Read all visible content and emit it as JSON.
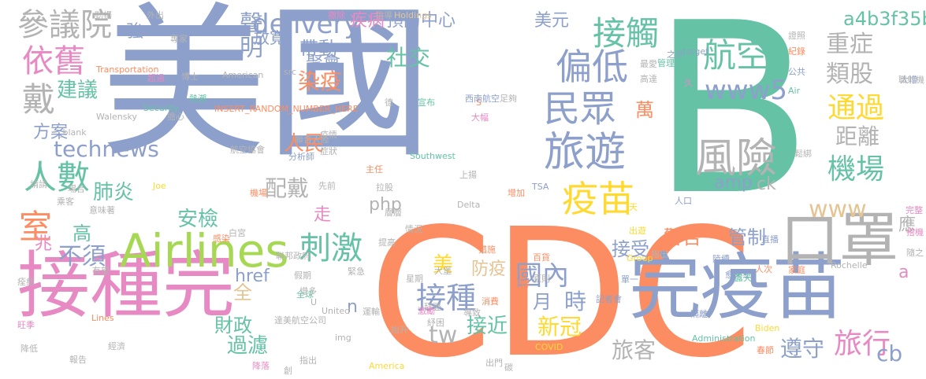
{
  "words": [
    {
      "text": "美國",
      "color": "#8da0cb"
    },
    {
      "text": "B",
      "color": "#66c2a5"
    },
    {
      "text": "CDC",
      "color": "#fc8d62"
    },
    {
      "text": "接種完",
      "color": "#e78ac3"
    },
    {
      "text": "完",
      "color": "#8da0cb"
    },
    {
      "text": "疫苗",
      "color": "#8da0cb"
    },
    {
      "text": "口罩",
      "color": "#b3b3b3"
    },
    {
      "text": "Airlines",
      "color": "#a6d854"
    },
    {
      "text": "旅遊",
      "color": "#8da0cb"
    },
    {
      "text": "風險",
      "color": "#b3b3b3"
    },
    {
      "text": "航空",
      "color": "#66c2a5"
    },
    {
      "text": "www5",
      "color": "#8da0cb"
    },
    {
      "text": "接觸",
      "color": "#66c2a5"
    },
    {
      "text": "偏低",
      "color": "#8da0cb"
    },
    {
      "text": "民眾",
      "color": "#8da0cb"
    },
    {
      "text": "疫苗",
      "color": "#ffd92f"
    },
    {
      "text": "參議院",
      "color": "#b3b3b3"
    },
    {
      "text": "依舊",
      "color": "#e78ac3"
    },
    {
      "text": "戴",
      "color": "#b3b3b3"
    },
    {
      "text": "delivery",
      "color": "#8da0cb"
    },
    {
      "text": "聲明",
      "color": "#8da0cb"
    },
    {
      "text": "放寬",
      "color": "#8da0cb"
    },
    {
      "text": "人數",
      "color": "#66c2a5"
    },
    {
      "text": "technews",
      "color": "#8da0cb"
    },
    {
      "text": "建議",
      "color": "#66c2a5"
    },
    {
      "text": "染疫",
      "color": "#fc8d62"
    },
    {
      "text": "人民",
      "color": "#fc8d62"
    },
    {
      "text": "肺炎",
      "color": "#66c2a5"
    },
    {
      "text": "配戴",
      "color": "#b3b3b3"
    },
    {
      "text": "安檢",
      "color": "#66c2a5"
    },
    {
      "text": "室",
      "color": "#fc8d62"
    },
    {
      "text": "高",
      "color": "#66c2a5"
    },
    {
      "text": "不須",
      "color": "#8da0cb"
    },
    {
      "text": "刺激",
      "color": "#66c2a5"
    },
    {
      "text": "全",
      "color": "#e5c494"
    },
    {
      "text": "財政",
      "color": "#66c2a5"
    },
    {
      "text": "過濾",
      "color": "#66c2a5"
    },
    {
      "text": "href",
      "color": "#8da0cb"
    },
    {
      "text": "接種",
      "color": "#8da0cb"
    },
    {
      "text": "國內",
      "color": "#8da0cb"
    },
    {
      "text": "新冠",
      "color": "#ffd92f"
    },
    {
      "text": "防疫",
      "color": "#e5c494"
    },
    {
      "text": "接近",
      "color": "#66c2a5"
    },
    {
      "text": "tw",
      "color": "#b3b3b3"
    },
    {
      "text": "重症",
      "color": "#b3b3b3"
    },
    {
      "text": "類股",
      "color": "#b3b3b3"
    },
    {
      "text": "通過",
      "color": "#ffd92f"
    },
    {
      "text": "距離",
      "color": "#b3b3b3"
    },
    {
      "text": "機場",
      "color": "#66c2a5"
    },
    {
      "text": "www",
      "color": "#e5c494"
    },
    {
      "text": "疾病",
      "color": "#e78ac3"
    },
    {
      "text": "預防中心",
      "color": "#8da0cb"
    },
    {
      "text": "美元",
      "color": "#8da0cb"
    },
    {
      "text": "a4b3f35b",
      "color": "#66c2a5"
    },
    {
      "text": "社交",
      "color": "#66c2a5"
    },
    {
      "text": "帶動",
      "color": "#8da0cb"
    },
    {
      "text": "聚會",
      "color": "#8da0cb"
    },
    {
      "text": "旅行",
      "color": "#e78ac3"
    },
    {
      "text": "遵守",
      "color": "#8da0cb"
    },
    {
      "text": "旅客",
      "color": "#b3b3b3"
    },
    {
      "text": "警告",
      "color": "#fc8d62"
    },
    {
      "text": "管制",
      "color": "#8da0cb"
    },
    {
      "text": "接受",
      "color": "#8da0cb"
    },
    {
      "text": "amp",
      "color": "#8da0cb"
    },
    {
      "text": "ck",
      "color": "#b3b3b3"
    },
    {
      "text": "萬",
      "color": "#fc8d62"
    },
    {
      "text": "cb",
      "color": "#8da0cb"
    },
    {
      "text": "應",
      "color": "#b3b3b3"
    },
    {
      "text": "月",
      "color": "#8da0cb"
    },
    {
      "text": "時",
      "color": "#8da0cb"
    },
    {
      "text": "美",
      "color": "#ffd92f"
    },
    {
      "text": "方案",
      "color": "#8da0cb"
    },
    {
      "text": "php",
      "color": "#b3b3b3"
    },
    {
      "text": "走",
      "color": "#e78ac3"
    },
    {
      "text": "兆",
      "color": "#e78ac3"
    },
    {
      "text": "強",
      "color": "#8da0cb"
    },
    {
      "text": "n",
      "color": "#8da0cb"
    },
    {
      "text": "a",
      "color": "#e78ac3"
    },
    {
      "text": "Transportation",
      "color": "#fc8d62"
    },
    {
      "text": "American",
      "color": "#b3b3b3"
    },
    {
      "text": "INSERT_RANDOM_NUMBER_HERE",
      "color": "#fc8d62"
    },
    {
      "text": "Security",
      "color": "#66c2a5"
    },
    {
      "text": "Walensky",
      "color": "#b3b3b3"
    },
    {
      "text": "_blank",
      "color": "#b3b3b3"
    },
    {
      "text": "Southwest",
      "color": "#66c2a5"
    },
    {
      "text": "Delta",
      "color": "#b3b3b3"
    },
    {
      "text": "United",
      "color": "#b3b3b3"
    },
    {
      "text": "America",
      "color": "#ffd92f"
    },
    {
      "text": "Holdings",
      "color": "#e5c494"
    },
    {
      "text": "Group",
      "color": "#ffd92f"
    },
    {
      "text": "Rochelle",
      "color": "#b3b3b3"
    },
    {
      "text": "Biden",
      "color": "#ffd92f"
    },
    {
      "text": "Administration",
      "color": "#66c2a5"
    },
    {
      "text": "COVID",
      "color": "#ffd92f"
    },
    {
      "text": "TSA",
      "color": "#8da0cb"
    },
    {
      "text": "target",
      "color": "#8da0cb"
    },
    {
      "text": "Joe",
      "color": "#ffd92f"
    },
    {
      "text": "Lines",
      "color": "#fc8d62"
    },
    {
      "text": "img",
      "color": "#b3b3b3"
    },
    {
      "text": "Air",
      "color": "#66c2a5"
    },
    {
      "text": "src",
      "color": "#b3b3b3"
    },
    {
      "text": "S",
      "color": "#fc8d62"
    },
    {
      "text": "U",
      "color": "#b3b3b3"
    },
    {
      "text": "勁揚",
      "color": "#b3b3b3"
    },
    {
      "text": "外出",
      "color": "#b3b3b3"
    },
    {
      "text": "撤除",
      "color": "#e78ac3"
    },
    {
      "text": "指導",
      "color": "#b3b3b3"
    },
    {
      "text": "博士",
      "color": "#b3b3b3"
    },
    {
      "text": "全球",
      "color": "#66c2a5"
    },
    {
      "text": "大幅",
      "color": "#e78ac3"
    },
    {
      "text": "旺季",
      "color": "#e78ac3"
    },
    {
      "text": "降低",
      "color": "#b3b3b3"
    },
    {
      "text": "經濟",
      "color": "#b3b3b3"
    },
    {
      "text": "出門",
      "color": "#b3b3b3"
    },
    {
      "text": "碳",
      "color": "#b3b3b3"
    },
    {
      "text": "家庭",
      "color": "#fc8d62"
    },
    {
      "text": "人口",
      "color": "#8da0cb"
    },
    {
      "text": "公共",
      "color": "#8da0cb"
    },
    {
      "text": "大增",
      "color": "#8da0cb"
    },
    {
      "text": "紀錄",
      "color": "#fc8d62"
    },
    {
      "text": "證照",
      "color": "#b3b3b3"
    },
    {
      "text": "聯邦政府",
      "color": "#b3b3b3"
    },
    {
      "text": "航空協會",
      "color": "#b3b3b3"
    },
    {
      "text": "西南航空",
      "color": "#8da0cb"
    },
    {
      "text": "達美航空公司",
      "color": "#b3b3b3"
    },
    {
      "text": "聯合大陸",
      "color": "#b3b3b3"
    },
    {
      "text": "分析師",
      "color": "#8da0cb"
    },
    {
      "text": "記者會",
      "color": "#8da0cb"
    },
    {
      "text": "管理局",
      "color": "#66c2a5"
    },
    {
      "text": "主任",
      "color": "#fc8d62"
    },
    {
      "text": "疫情",
      "color": "#b3b3b3"
    },
    {
      "text": "乘客",
      "color": "#b3b3b3"
    },
    {
      "text": "意味著",
      "color": "#b3b3b3"
    },
    {
      "text": "有望",
      "color": "#b3b3b3"
    },
    {
      "text": "痊癒",
      "color": "#b3b3b3"
    },
    {
      "text": "感染",
      "color": "#fc8d62"
    },
    {
      "text": "直播",
      "color": "#8da0cb"
    },
    {
      "text": "人次",
      "color": "#fc8d62"
    },
    {
      "text": "隨之",
      "color": "#b3b3b3"
    },
    {
      "text": "完整",
      "color": "#e78ac3"
    },
    {
      "text": "指出",
      "color": "#b3b3b3"
    },
    {
      "text": "單一",
      "color": "#8da0cb"
    },
    {
      "text": "陸續",
      "color": "#8da0cb"
    },
    {
      "text": "愈來愈",
      "color": "#8da0cb"
    },
    {
      "text": "隔離",
      "color": "#8da0cb"
    },
    {
      "text": "百貨",
      "color": "#fc8d62"
    },
    {
      "text": "星期",
      "color": "#b3b3b3"
    },
    {
      "text": "拜登",
      "color": "#b3b3b3"
    },
    {
      "text": "措施",
      "color": "#fc8d62"
    },
    {
      "text": "消費",
      "color": "#fc8d62"
    },
    {
      "text": "所得",
      "color": "#fc8d62"
    },
    {
      "text": "增加",
      "color": "#fc8d62"
    },
    {
      "text": "足夠",
      "color": "#b3b3b3"
    },
    {
      "text": "德",
      "color": "#b3b3b3"
    },
    {
      "text": "宣布",
      "color": "#66c2a5"
    },
    {
      "text": "上揚",
      "color": "#b3b3b3"
    },
    {
      "text": "白宮",
      "color": "#b3b3b3"
    },
    {
      "text": "機場",
      "color": "#fc8d62"
    },
    {
      "text": "先前",
      "color": "#b3b3b3"
    },
    {
      "text": "症狀",
      "color": "#b3b3b3"
    },
    {
      "text": "鬆綁",
      "color": "#b3b3b3"
    },
    {
      "text": "請請",
      "color": "#b3b3b3"
    },
    {
      "text": "場合",
      "color": "#b3b3b3"
    },
    {
      "text": "熱潮",
      "color": "#66c2a5"
    },
    {
      "text": "超過",
      "color": "#e78ac3"
    },
    {
      "text": "專家",
      "color": "#b3b3b3"
    },
    {
      "text": "擔心",
      "color": "#b3b3b3"
    },
    {
      "text": "假期",
      "color": "#b3b3b3"
    },
    {
      "text": "運輸",
      "color": "#b3b3b3"
    },
    {
      "text": "緊急",
      "color": "#b3b3b3"
    },
    {
      "text": "提高",
      "color": "#b3b3b3"
    },
    {
      "text": "原則",
      "color": "#b3b3b3"
    },
    {
      "text": "春節",
      "color": "#fc8d62"
    },
    {
      "text": "露天",
      "color": "#66c2a5"
    },
    {
      "text": "出遊",
      "color": "#ffd92f"
    },
    {
      "text": "天",
      "color": "#ffd92f"
    },
    {
      "text": "久",
      "color": "#e78ac3"
    },
    {
      "text": "高達",
      "color": "#b3b3b3"
    },
    {
      "text": "最愛",
      "color": "#b3b3b3"
    },
    {
      "text": "之外",
      "color": "#8da0cb"
    },
    {
      "text": "激勵",
      "color": "#e78ac3"
    },
    {
      "text": "紓困",
      "color": "#b3b3b3"
    },
    {
      "text": "抬升",
      "color": "#b3b3b3"
    },
    {
      "text": "降落",
      "color": "#e78ac3"
    },
    {
      "text": "指出",
      "color": "#b3b3b3"
    },
    {
      "text": "創",
      "color": "#b3b3b3"
    },
    {
      "text": "報告",
      "color": "#b3b3b3"
    },
    {
      "text": "層層",
      "color": "#b3b3b3"
    },
    {
      "text": "增多",
      "color": "#b3b3b3"
    },
    {
      "text": "職射機",
      "color": "#b3b3b3"
    },
    {
      "text": "搭機",
      "color": "#e78ac3"
    },
    {
      "text": "拉股",
      "color": "#b3b3b3"
    },
    {
      "text": "情況",
      "color": "#b3b3b3"
    },
    {
      "text": "大堡",
      "color": "#b3b3b3"
    },
    {
      "text": "導致",
      "color": "#b3b3b3"
    }
  ]
}
